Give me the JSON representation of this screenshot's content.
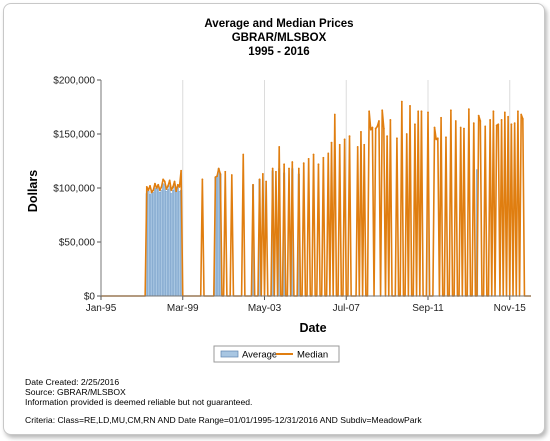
{
  "chart_data": {
    "type": "bar",
    "title": "Average and Median Prices",
    "subtitle": "GBRAR/MLSBOX",
    "subtitle2": "1995 - 2016",
    "xlabel": "Date",
    "ylabel": "Dollars",
    "ylim": [
      0,
      200000
    ],
    "yticks": [
      "$0",
      "$50,000",
      "$100,000",
      "$150,000",
      "$200,000"
    ],
    "x_tick_labels": [
      "Jan-95",
      "Mar-99",
      "May-03",
      "Jul-07",
      "Sep-11",
      "Nov-15"
    ],
    "x_start": "1995-01",
    "x_end": "2016-12",
    "grid": "vertical",
    "legend_position": "bottom",
    "colors": {
      "average": "#a8c6e2",
      "median": "#e07e10"
    },
    "series": [
      {
        "name": "Average",
        "values": [
          [
            1997,
            5,
            95000
          ],
          [
            1997,
            6,
            97000
          ],
          [
            1997,
            7,
            94000
          ],
          [
            1997,
            8,
            98000
          ],
          [
            1997,
            9,
            96000
          ],
          [
            1997,
            10,
            100000
          ],
          [
            1997,
            11,
            99000
          ],
          [
            1997,
            12,
            101000
          ],
          [
            1998,
            1,
            96000
          ],
          [
            1998,
            2,
            98000
          ],
          [
            1998,
            3,
            104000
          ],
          [
            1998,
            4,
            103000
          ],
          [
            1998,
            5,
            97000
          ],
          [
            1998,
            6,
            99000
          ],
          [
            1998,
            7,
            102000
          ],
          [
            1998,
            8,
            95000
          ],
          [
            1998,
            9,
            98000
          ],
          [
            1998,
            10,
            103000
          ],
          [
            1998,
            11,
            97000
          ],
          [
            1998,
            12,
            101000
          ],
          [
            1999,
            1,
            97000
          ],
          [
            1999,
            2,
            98000
          ],
          [
            2000,
            11,
            110000
          ],
          [
            2000,
            12,
            111000
          ],
          [
            2001,
            1,
            118000
          ],
          [
            2001,
            2,
            113000
          ],
          [
            2002,
            10,
            103000
          ],
          [
            2003,
            2,
            108000
          ],
          [
            2003,
            10,
            116000
          ],
          [
            2004,
            2,
            118000
          ],
          [
            2004,
            5,
            114000
          ],
          [
            2004,
            10,
            118000
          ],
          [
            2005,
            2,
            113000
          ],
          [
            2014,
            3,
            117000
          ]
        ]
      },
      {
        "name": "Median",
        "values": [
          [
            1997,
            5,
            101000
          ],
          [
            1997,
            6,
            98000
          ],
          [
            1997,
            7,
            102000
          ],
          [
            1997,
            8,
            96000
          ],
          [
            1997,
            9,
            98000
          ],
          [
            1997,
            10,
            104000
          ],
          [
            1997,
            11,
            100000
          ],
          [
            1997,
            12,
            103000
          ],
          [
            1998,
            1,
            98000
          ],
          [
            1998,
            2,
            101000
          ],
          [
            1998,
            3,
            108000
          ],
          [
            1998,
            4,
            106000
          ],
          [
            1998,
            5,
            99000
          ],
          [
            1998,
            6,
            102000
          ],
          [
            1998,
            7,
            107000
          ],
          [
            1998,
            8,
            98000
          ],
          [
            1998,
            9,
            101000
          ],
          [
            1998,
            10,
            106000
          ],
          [
            1998,
            11,
            97000
          ],
          [
            1998,
            12,
            103000
          ],
          [
            1999,
            1,
            101000
          ],
          [
            1999,
            2,
            116000
          ],
          [
            2000,
            3,
            108000
          ],
          [
            2000,
            11,
            110000
          ],
          [
            2000,
            12,
            111000
          ],
          [
            2001,
            1,
            118000
          ],
          [
            2001,
            2,
            113000
          ],
          [
            2001,
            5,
            115000
          ],
          [
            2001,
            9,
            112000
          ],
          [
            2002,
            4,
            131000
          ],
          [
            2002,
            10,
            103000
          ],
          [
            2003,
            2,
            108000
          ],
          [
            2003,
            4,
            113000
          ],
          [
            2003,
            6,
            106000
          ],
          [
            2003,
            10,
            118000
          ],
          [
            2003,
            12,
            115000
          ],
          [
            2004,
            2,
            138000
          ],
          [
            2004,
            5,
            122000
          ],
          [
            2004,
            8,
            118000
          ],
          [
            2004,
            10,
            124000
          ],
          [
            2005,
            2,
            118000
          ],
          [
            2005,
            5,
            123000
          ],
          [
            2005,
            8,
            127000
          ],
          [
            2005,
            11,
            131000
          ],
          [
            2006,
            2,
            122000
          ],
          [
            2006,
            5,
            128000
          ],
          [
            2006,
            8,
            132000
          ],
          [
            2006,
            10,
            142000
          ],
          [
            2006,
            12,
            168000
          ],
          [
            2007,
            3,
            140000
          ],
          [
            2007,
            6,
            145000
          ],
          [
            2007,
            9,
            148000
          ],
          [
            2008,
            2,
            138000
          ],
          [
            2008,
            4,
            152000
          ],
          [
            2008,
            6,
            140000
          ],
          [
            2008,
            9,
            171000
          ],
          [
            2008,
            10,
            154000
          ],
          [
            2008,
            11,
            156000
          ],
          [
            2009,
            1,
            155000
          ],
          [
            2009,
            2,
            157000
          ],
          [
            2009,
            3,
            162000
          ],
          [
            2009,
            5,
            172000
          ],
          [
            2009,
            6,
            155000
          ],
          [
            2009,
            8,
            148000
          ],
          [
            2009,
            10,
            163000
          ],
          [
            2010,
            2,
            146000
          ],
          [
            2010,
            5,
            180000
          ],
          [
            2010,
            8,
            150000
          ],
          [
            2010,
            10,
            176000
          ],
          [
            2011,
            1,
            159000
          ],
          [
            2011,
            3,
            171000
          ],
          [
            2011,
            5,
            171000
          ],
          [
            2011,
            9,
            170000
          ],
          [
            2012,
            1,
            156000
          ],
          [
            2012,
            2,
            145000
          ],
          [
            2012,
            3,
            146000
          ],
          [
            2012,
            5,
            165000
          ],
          [
            2012,
            8,
            147000
          ],
          [
            2012,
            11,
            172000
          ],
          [
            2013,
            2,
            162000
          ],
          [
            2013,
            5,
            156000
          ],
          [
            2013,
            7,
            155000
          ],
          [
            2013,
            10,
            173000
          ],
          [
            2014,
            1,
            160000
          ],
          [
            2014,
            4,
            167000
          ],
          [
            2014,
            5,
            162000
          ],
          [
            2014,
            8,
            157000
          ],
          [
            2014,
            11,
            163000
          ],
          [
            2015,
            1,
            171000
          ],
          [
            2015,
            3,
            158000
          ],
          [
            2015,
            4,
            159000
          ],
          [
            2015,
            6,
            163000
          ],
          [
            2015,
            8,
            170000
          ],
          [
            2015,
            10,
            166000
          ],
          [
            2015,
            12,
            159000
          ],
          [
            2016,
            2,
            160000
          ],
          [
            2016,
            4,
            171000
          ],
          [
            2016,
            6,
            168000
          ],
          [
            2016,
            7,
            164000
          ]
        ]
      }
    ]
  },
  "footer": {
    "date_created": "Date Created: 2/25/2016",
    "source": "Source: GBRAR/MLSBOX",
    "disclaimer": "Information provided is deemed reliable but not guaranteed.",
    "criteria": "Criteria: Class=RE,LD,MU,CM,RN AND Date Range=01/01/1995-12/31/2016 AND Subdiv=MeadowPark"
  }
}
